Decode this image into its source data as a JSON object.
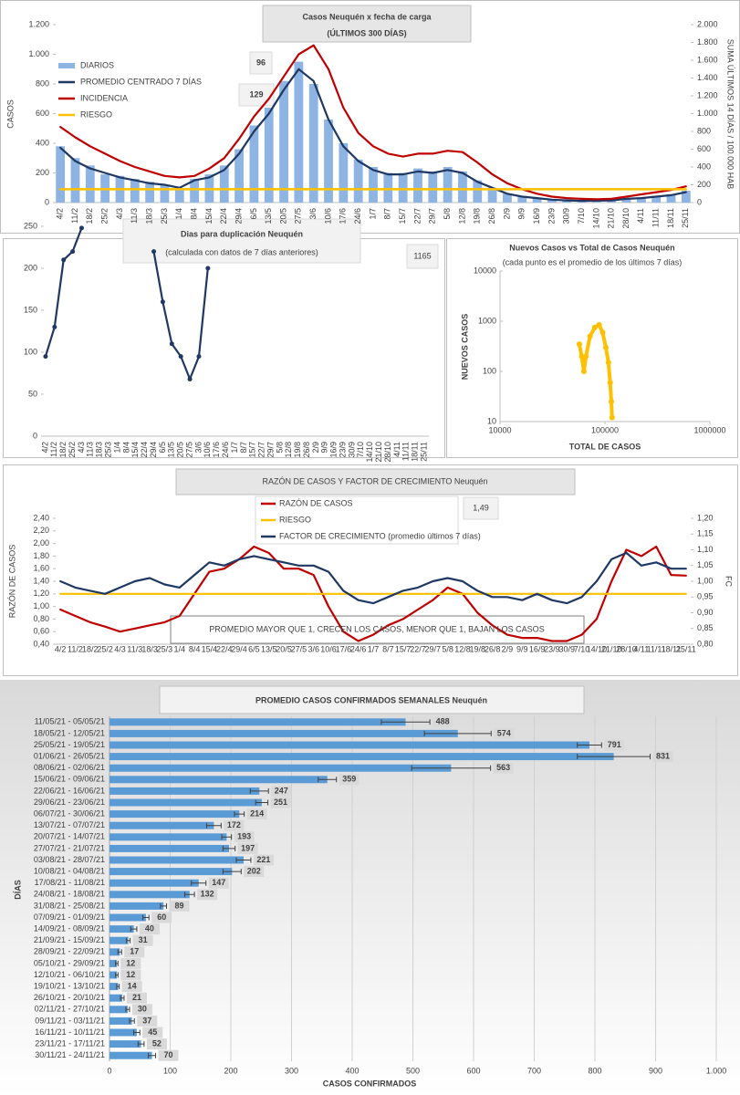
{
  "chart_data": [
    {
      "type": "combo",
      "title": "Casos  Neuquén  x fecha de carga",
      "subtitle": "(ÚLTIMOS 300 DÍAS)",
      "ylabel": "CASOS",
      "y2label": "SUMA  ÚLTIMOS 14 DÍAS / 100.000 HAB",
      "categories": [
        "4/2",
        "11/2",
        "18/2",
        "25/2",
        "4/3",
        "11/3",
        "18/3",
        "25/3",
        "1/4",
        "8/4",
        "15/4",
        "22/4",
        "29/4",
        "6/5",
        "13/5",
        "20/5",
        "27/5",
        "3/6",
        "10/6",
        "17/6",
        "24/6",
        "1/7",
        "8/7",
        "15/7",
        "22/7",
        "29/7",
        "5/8",
        "12/8",
        "19/8",
        "26/8",
        "2/9",
        "9/9",
        "16/9",
        "23/9",
        "30/9",
        "7/10",
        "14/10",
        "21/10",
        "28/10",
        "4/11",
        "11/11",
        "18/11",
        "25/11"
      ],
      "ylim": [
        0,
        1200
      ],
      "yticks": [
        0,
        200,
        400,
        600,
        800,
        {
          "value": 1000,
          "label": "1.000"
        },
        {
          "value": 1200,
          "label": "1.200"
        }
      ],
      "y2lim": [
        0,
        2000
      ],
      "y2ticks": [
        0,
        200,
        400,
        600,
        800,
        {
          "value": 1000,
          "label": "1.000"
        },
        {
          "value": 1200,
          "label": "1.200"
        },
        {
          "value": 1400,
          "label": "1.400"
        },
        {
          "value": 1600,
          "label": "1.600"
        },
        {
          "value": 1800,
          "label": "1.800"
        },
        {
          "value": 2000,
          "label": "2.000"
        }
      ],
      "series": [
        {
          "name": "DIARIOS",
          "type": "bar",
          "color": "#8db4e2",
          "values": [
            380,
            300,
            250,
            190,
            180,
            160,
            140,
            120,
            90,
            160,
            190,
            250,
            360,
            520,
            640,
            820,
            950,
            800,
            560,
            400,
            290,
            240,
            200,
            200,
            230,
            210,
            240,
            210,
            150,
            100,
            60,
            45,
            30,
            20,
            15,
            12,
            13,
            15,
            28,
            32,
            45,
            55,
            80
          ]
        },
        {
          "name": "PROMEDIO CENTRADO 7 DÍAS",
          "type": "line",
          "color": "#1f3864",
          "values": [
            370,
            280,
            230,
            200,
            170,
            150,
            130,
            120,
            100,
            150,
            170,
            220,
            330,
            480,
            600,
            760,
            900,
            820,
            560,
            380,
            280,
            220,
            190,
            190,
            210,
            200,
            220,
            200,
            140,
            100,
            60,
            40,
            30,
            20,
            15,
            12,
            13,
            15,
            25,
            30,
            40,
            50,
            70
          ]
        },
        {
          "name": "INCIDENCIA",
          "type": "line",
          "axis": "y2",
          "color": "#c00000",
          "values": [
            850,
            733,
            633,
            550,
            467,
            400,
            350,
            300,
            283,
            300,
            383,
            500,
            717,
            967,
            1167,
            1417,
            1667,
            1767,
            1500,
            1067,
            783,
            633,
            550,
            517,
            550,
            550,
            583,
            567,
            450,
            317,
            217,
            150,
            100,
            67,
            50,
            42,
            37,
            42,
            67,
            92,
            117,
            142,
            183
          ]
        },
        {
          "name": "RIESGO",
          "type": "line",
          "axis": "y2",
          "color": "#ffc000",
          "values": [
            150,
            150,
            150,
            150,
            150,
            150,
            150,
            150,
            150,
            150,
            150,
            150,
            150,
            150,
            150,
            150,
            150,
            150,
            150,
            150,
            150,
            150,
            150,
            150,
            150,
            150,
            150,
            150,
            150,
            150,
            150,
            150,
            150,
            150,
            150,
            150,
            150,
            150,
            150,
            150,
            150,
            150,
            150
          ]
        }
      ],
      "annotations": [
        "96",
        "129"
      ]
    },
    {
      "type": "line",
      "title": "Dias para duplicación Neuquén",
      "subtitle": "(calculada con datos de 7 días anteriores)",
      "annotation": "1165",
      "color": "#1f3864",
      "categories": [
        "4/2",
        "11/2",
        "18/2",
        "25/2",
        "4/3",
        "11/3",
        "18/3",
        "25/3",
        "1/4",
        "8/4",
        "15/4",
        "22/4",
        "29/4",
        "6/5",
        "13/5",
        "20/5",
        "27/5",
        "3/6",
        "10/6",
        "17/6",
        "24/6",
        "1/7",
        "8/7",
        "15/7",
        "22/7",
        "29/7",
        "5/8",
        "12/8",
        "19/8",
        "26/8",
        "2/9",
        "9/9",
        "16/9",
        "23/9",
        "30/9",
        "7/10",
        "14/10",
        "21/10",
        "28/10",
        "4/11",
        "11/11",
        "18/11",
        "25/11"
      ],
      "values": [
        95,
        130,
        210,
        220,
        248,
        null,
        null,
        null,
        null,
        null,
        null,
        null,
        220,
        160,
        110,
        95,
        68,
        95,
        200,
        null,
        null,
        null,
        null,
        null,
        null,
        null,
        null,
        null,
        null,
        null,
        null,
        null,
        null,
        null,
        null,
        null,
        null,
        null,
        null,
        null,
        null,
        null,
        null
      ],
      "ylim": [
        0,
        250
      ],
      "yticks": [
        0,
        50,
        100,
        150,
        200,
        250
      ]
    },
    {
      "type": "scatter",
      "title": "Nuevos Casos vs Total de Casos Neuquén",
      "subtitle": "(cada punto es el promedio de los últimos 7 días)",
      "xlabel": "TOTAL DE CASOS",
      "ylabel": "NUEVOS CASOS",
      "xlog": true,
      "ylog": true,
      "color": "#ffc000",
      "xlim": [
        10000,
        1000000
      ],
      "xticks": [
        10000,
        100000,
        1000000
      ],
      "ylim": [
        10,
        10000
      ],
      "yticks": [
        10,
        100,
        1000,
        10000
      ],
      "x": [
        57000,
        60000,
        63000,
        66000,
        72000,
        80000,
        88000,
        95000,
        102000,
        108000,
        112000,
        115000,
        117000
      ],
      "values": [
        350,
        200,
        100,
        200,
        500,
        750,
        850,
        600,
        300,
        150,
        60,
        25,
        12
      ]
    },
    {
      "type": "line",
      "title": "RAZÓN DE CASOS Y FACTOR DE CRECIMIENTO Neuquén",
      "ylabel": "RAZÓN DE CASOS",
      "y2label": "FC",
      "annotation": "1,49",
      "note": "PROMEDIO MAYOR QUE 1, CRECEN LOS CASOS, MENOR QUE 1, BAJAN LOS CASOS",
      "categories": [
        "4/2",
        "11/2",
        "18/2",
        "25/2",
        "4/3",
        "11/3",
        "18/3",
        "25/3",
        "1/4",
        "8/4",
        "15/4",
        "22/4",
        "29/4",
        "6/5",
        "13/5",
        "20/5",
        "27/5",
        "3/6",
        "10/6",
        "17/6",
        "24/6",
        "1/7",
        "8/7",
        "15/7",
        "22/7",
        "29/7",
        "5/8",
        "12/8",
        "19/8",
        "26/8",
        "2/9",
        "9/9",
        "16/9",
        "23/9",
        "30/9",
        "7/10",
        "14/10",
        "21/10",
        "28/10",
        "4/11",
        "11/11",
        "18/11",
        "25/11"
      ],
      "ylim": [
        0.4,
        2.4
      ],
      "yticks": [
        {
          "value": 0.4,
          "label": "0,40"
        },
        {
          "value": 0.6,
          "label": "0,60"
        },
        {
          "value": 0.8,
          "label": "0,80"
        },
        {
          "value": 1.0,
          "label": "1,00"
        },
        {
          "value": 1.2,
          "label": "1,20"
        },
        {
          "value": 1.4,
          "label": "1,40"
        },
        {
          "value": 1.6,
          "label": "1,60"
        },
        {
          "value": 1.8,
          "label": "1,80"
        },
        {
          "value": 2.0,
          "label": "2,00"
        },
        {
          "value": 2.2,
          "label": "2,20"
        },
        {
          "value": 2.4,
          "label": "2,40"
        }
      ],
      "y2lim": [
        0.8,
        1.2
      ],
      "y2ticks": [
        {
          "value": 0.8,
          "label": "0,80"
        },
        {
          "value": 0.85,
          "label": "0,85"
        },
        {
          "value": 0.9,
          "label": "0,90"
        },
        {
          "value": 0.95,
          "label": "0,95"
        },
        {
          "value": 1.0,
          "label": "1,00"
        },
        {
          "value": 1.05,
          "label": "1,05"
        },
        {
          "value": 1.1,
          "label": "1,10"
        },
        {
          "value": 1.15,
          "label": "1,15"
        },
        {
          "value": 1.2,
          "label": "1,20"
        }
      ],
      "series": [
        {
          "name": "RAZÓN DE CASOS",
          "color": "#c00000",
          "values": [
            0.95,
            0.85,
            0.75,
            0.68,
            0.6,
            0.65,
            0.7,
            0.75,
            0.85,
            1.2,
            1.55,
            1.6,
            1.75,
            1.95,
            1.85,
            1.6,
            1.6,
            1.5,
            1.0,
            0.6,
            0.45,
            0.55,
            0.7,
            0.8,
            0.95,
            1.1,
            1.3,
            1.2,
            0.9,
            0.7,
            0.55,
            0.5,
            0.5,
            0.45,
            0.45,
            0.55,
            0.8,
            1.4,
            1.9,
            1.8,
            1.95,
            1.5,
            1.49
          ]
        },
        {
          "name": "RIESGO",
          "color": "#ffc000",
          "values": [
            1.2,
            1.2,
            1.2,
            1.2,
            1.2,
            1.2,
            1.2,
            1.2,
            1.2,
            1.2,
            1.2,
            1.2,
            1.2,
            1.2,
            1.2,
            1.2,
            1.2,
            1.2,
            1.2,
            1.2,
            1.2,
            1.2,
            1.2,
            1.2,
            1.2,
            1.2,
            1.2,
            1.2,
            1.2,
            1.2,
            1.2,
            1.2,
            1.2,
            1.2,
            1.2,
            1.2,
            1.2,
            1.2,
            1.2,
            1.2,
            1.2,
            1.2,
            1.2
          ]
        },
        {
          "name": "FACTOR DE CRECIMIENTO (promedio últimos 7 días)",
          "axis": "y2",
          "color": "#1f3864",
          "values": [
            1.0,
            0.98,
            0.97,
            0.96,
            0.98,
            1.0,
            1.01,
            0.99,
            0.98,
            1.02,
            1.06,
            1.05,
            1.07,
            1.08,
            1.07,
            1.06,
            1.05,
            1.05,
            1.03,
            0.97,
            0.94,
            0.93,
            0.95,
            0.97,
            0.98,
            1.0,
            1.01,
            1.0,
            0.97,
            0.95,
            0.95,
            0.94,
            0.96,
            0.94,
            0.93,
            0.95,
            1.0,
            1.07,
            1.09,
            1.05,
            1.06,
            1.04,
            1.04
          ]
        }
      ]
    },
    {
      "type": "hbar",
      "title": "PROMEDIO CASOS CONFIRMADOS SEMANALES Neuquén",
      "xlabel": "CASOS CONFIRMADOS",
      "ylabel": "DÍAS",
      "color": "#5b9bd5",
      "grid": true,
      "categories": [
        "11/05/21 - 05/05/21",
        "18/05/21 - 12/05/21",
        "25/05/21 - 19/05/21",
        "01/06/21 - 26/05/21",
        "08/06/21 - 02/06/21",
        "15/06/21 - 09/06/21",
        "22/06/21 - 16/06/21",
        "29/06/21 - 23/06/21",
        "06/07/21 - 30/06/21",
        "13/07/21 - 07/07/21",
        "20/07/21 - 14/07/21",
        "27/07/21 - 21/07/21",
        "03/08/21 - 28/07/21",
        "10/08/21 - 04/08/21",
        "17/08/21 - 11/08/21",
        "24/08/21 - 18/08/21",
        "31/08/21 - 25/08/21",
        "07/09/21 - 01/09/21",
        "14/09/21 - 08/09/21",
        "21/09/21 - 15/09/21",
        "28/09/21 - 22/09/21",
        "05/10/21 - 29/09/21",
        "12/10/21 - 06/10/21",
        "19/10/21 - 13/10/21",
        "26/10/21 - 20/10/21",
        "02/11/21 - 27/10/21",
        "09/11/21 - 03/11/21",
        "16/11/21 - 10/11/21",
        "23/11/21 - 17/11/21",
        "30/11/21 - 24/11/21"
      ],
      "values": [
        488,
        574,
        791,
        831,
        563,
        359,
        247,
        251,
        214,
        172,
        193,
        197,
        221,
        202,
        147,
        132,
        89,
        60,
        40,
        31,
        17,
        12,
        12,
        14,
        21,
        30,
        37,
        45,
        52,
        70
      ],
      "errors": [
        40,
        55,
        20,
        60,
        65,
        15,
        15,
        10,
        8,
        12,
        8,
        10,
        12,
        15,
        12,
        8,
        5,
        5,
        5,
        3,
        3,
        2,
        2,
        2,
        3,
        3,
        4,
        5,
        5,
        6
      ],
      "xlim": [
        0,
        1000
      ],
      "xticks": [
        0,
        100,
        200,
        300,
        400,
        500,
        600,
        700,
        800,
        900,
        {
          "value": 1000,
          "label": "1.000"
        }
      ]
    }
  ]
}
